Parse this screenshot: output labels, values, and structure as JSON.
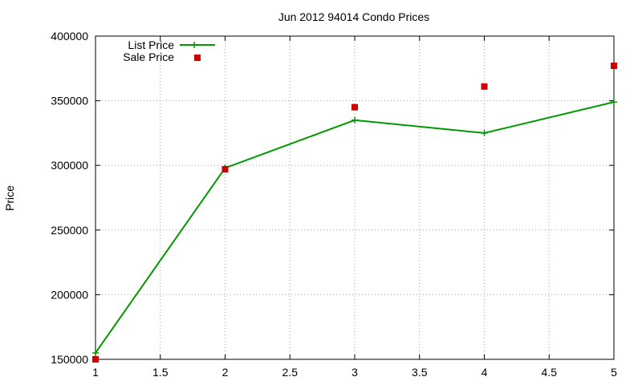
{
  "chart_data": {
    "type": "line",
    "title": "Jun 2012 94014 Condo Prices",
    "xlabel": "",
    "ylabel": "Price",
    "x": [
      1,
      2,
      3,
      4,
      5
    ],
    "xlim": [
      1,
      5
    ],
    "ylim": [
      150000,
      400000
    ],
    "xticks": [
      "1",
      "1.5",
      "2",
      "2.5",
      "3",
      "3.5",
      "4",
      "4.5",
      "5"
    ],
    "xtick_values": [
      1,
      1.5,
      2,
      2.5,
      3,
      3.5,
      4,
      4.5,
      5
    ],
    "yticks": [
      "150000",
      "200000",
      "250000",
      "300000",
      "350000",
      "400000"
    ],
    "ytick_values": [
      150000,
      200000,
      250000,
      300000,
      350000,
      400000
    ],
    "grid": true,
    "legend_position": "top-left",
    "series": [
      {
        "name": "List Price",
        "style": "line-points",
        "color": "#009900",
        "values": [
          155000,
          298000,
          335000,
          325000,
          349000
        ]
      },
      {
        "name": "Sale Price",
        "style": "points",
        "color": "#cc0000",
        "values": [
          150000,
          297000,
          345000,
          361000,
          377000
        ]
      }
    ]
  }
}
